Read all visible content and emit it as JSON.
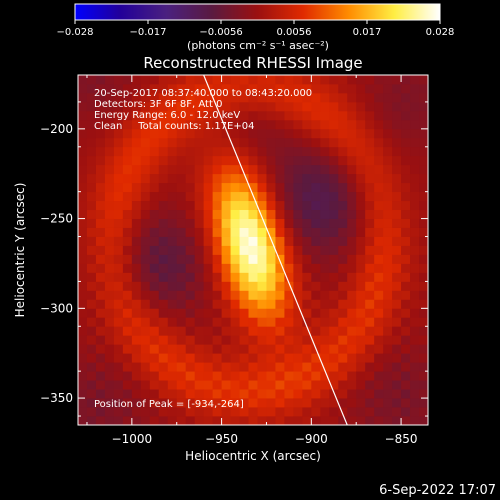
{
  "colorbar": {
    "ticks": [
      "−0.028",
      "−0.017",
      "−0.0056",
      "0.0056",
      "0.017",
      "0.028"
    ],
    "unit": "(photons cm⁻² s⁻¹ asec⁻²)",
    "colors": [
      "#0000ff",
      "#220099",
      "#4a2080",
      "#5a1a40",
      "#9b1010",
      "#e02a00",
      "#ff8c00",
      "#ffee44",
      "#ffffff"
    ]
  },
  "footer": {
    "date": "6-Sep-2022 17:07"
  },
  "chart_data": {
    "type": "heatmap",
    "title": "Reconstructed RHESSI Image",
    "xlabel": "Heliocentric X (arcsec)",
    "ylabel": "Heliocentric Y (arcsec)",
    "xlim": [
      -1030,
      -835
    ],
    "ylim": [
      -365,
      -170
    ],
    "x_ticks": [
      -1000,
      -950,
      -900,
      -850
    ],
    "y_ticks": [
      -200,
      -250,
      -300,
      -350
    ],
    "x_tick_labels": [
      "−1000",
      "−950",
      "−900",
      "−850"
    ],
    "y_tick_labels": [
      "−200",
      "−250",
      "−300",
      "−350"
    ],
    "info_lines": [
      "20-Sep-2017 08:37:40.000 to 08:43:20.000",
      "Detectors: 3F 6F 8F, Att 0",
      "Energy Range: 6.0 - 12.0 keV",
      "Clean     Total counts: 1.17E+04"
    ],
    "peak_label": "Position of Peak = [-934,-264]",
    "peak": [
      -934,
      -264
    ],
    "peak_intensity": 0.028,
    "limb_line": [
      [
        -960,
        -170
      ],
      [
        -880,
        -365
      ]
    ],
    "grid": false
  }
}
